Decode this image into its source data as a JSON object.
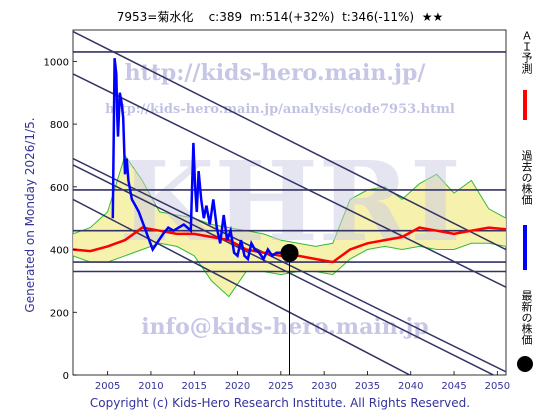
{
  "title": "7953=菊水化    c:389  m:514(+32%)  t:346(-11%)  ★★",
  "side_label": "Generated on Monday 2026/1/5.",
  "copyright": "Copyright (c) Kids-Hero Research Institute. All Rights Reserved.",
  "watermarks": {
    "url": "http://kids-hero.main.jp/",
    "analysis_url": "http://kids-hero.main.jp/analysis/code7953.html",
    "brand": "KHRI",
    "email": "info@kids-hero.main.jp"
  },
  "legend": [
    {
      "label": "ＡＩ予測",
      "color": "#ff0000",
      "marker": "line"
    },
    {
      "label": "過去の株価",
      "color": "#0000ff",
      "marker": "line"
    },
    {
      "label": "最新の株価",
      "color": "#000000",
      "marker": "dot"
    }
  ],
  "chart_data": {
    "type": "line",
    "title": "7953=菊水化    c:389  m:514(+32%)  t:346(-11%)  ★★",
    "xlim": [
      2001,
      2051
    ],
    "ylim": [
      0,
      1100
    ],
    "x_ticks": [
      2005,
      2010,
      2015,
      2020,
      2025,
      2030,
      2035,
      2040,
      2045,
      2050
    ],
    "y_ticks": [
      0,
      200,
      400,
      600,
      800,
      1000
    ],
    "grid": false,
    "legend_position": "right",
    "latest_price": {
      "x": 2026.0,
      "y": 389
    },
    "horizontal_levels": [
      1030,
      590,
      460,
      360,
      330
    ],
    "trend_lines": [
      {
        "from": [
          2001,
          1095
        ],
        "to": [
          2051,
          400
        ]
      },
      {
        "from": [
          2001,
          960
        ],
        "to": [
          2051,
          280
        ]
      },
      {
        "from": [
          2001,
          690
        ],
        "to": [
          2051,
          10
        ]
      },
      {
        "from": [
          2001,
          670
        ],
        "to": [
          2051,
          -20
        ]
      },
      {
        "from": [
          2001,
          560
        ],
        "to": [
          2051,
          -160
        ]
      }
    ],
    "series": [
      {
        "name": "過去の株価",
        "color": "#0000ff",
        "x": [
          2005.6,
          2005.8,
          2006.0,
          2006.1,
          2006.2,
          2006.4,
          2006.6,
          2006.8,
          2007.0,
          2007.2,
          2007.4,
          2007.8,
          2008.2,
          2008.6,
          2010.2,
          2011.4,
          2012.0,
          2012.6,
          2013.2,
          2013.8,
          2014.2,
          2014.6,
          2014.9,
          2015.1,
          2015.3,
          2015.5,
          2015.8,
          2016.1,
          2016.4,
          2016.8,
          2017.2,
          2017.6,
          2018.0,
          2018.4,
          2018.8,
          2019.2,
          2019.6,
          2020.0,
          2020.4,
          2020.8,
          2021.2,
          2021.6,
          2022.0,
          2022.5,
          2023.0,
          2023.5,
          2024.0,
          2024.5,
          2025.0,
          2025.5,
          2026.0
        ],
        "y": [
          500,
          1010,
          960,
          830,
          760,
          900,
          870,
          820,
          640,
          690,
          620,
          560,
          540,
          520,
          400,
          450,
          470,
          460,
          470,
          480,
          470,
          460,
          740,
          600,
          520,
          650,
          560,
          500,
          540,
          480,
          560,
          470,
          420,
          510,
          430,
          460,
          390,
          380,
          430,
          380,
          370,
          420,
          400,
          390,
          370,
          400,
          380,
          390,
          390,
          395,
          389
        ]
      },
      {
        "name": "ＡＩ予測",
        "color": "#ff0000",
        "x": [
          2001,
          2003,
          2005,
          2007,
          2009,
          2011,
          2013,
          2015,
          2017,
          2019,
          2021,
          2023,
          2025,
          2027,
          2029,
          2031,
          2033,
          2035,
          2037,
          2039,
          2041,
          2043,
          2045,
          2047,
          2049,
          2051
        ],
        "y": [
          400,
          395,
          410,
          430,
          470,
          460,
          450,
          450,
          440,
          430,
          400,
          390,
          380,
          380,
          370,
          360,
          400,
          420,
          430,
          440,
          470,
          460,
          450,
          460,
          470,
          465
        ]
      },
      {
        "name": "forecast_band_upper",
        "color": "#33bb33",
        "x": [
          2001,
          2003,
          2005,
          2007,
          2009,
          2011,
          2013,
          2015,
          2017,
          2019,
          2021,
          2023,
          2025,
          2027,
          2029,
          2031,
          2033,
          2035,
          2037,
          2039,
          2041,
          2043,
          2045,
          2047,
          2049,
          2051
        ],
        "y": [
          450,
          470,
          520,
          700,
          620,
          520,
          510,
          500,
          480,
          470,
          460,
          450,
          430,
          420,
          410,
          420,
          560,
          590,
          600,
          560,
          610,
          640,
          580,
          620,
          530,
          500
        ]
      },
      {
        "name": "forecast_band_lower",
        "color": "#33bb33",
        "x": [
          2001,
          2003,
          2005,
          2007,
          2009,
          2011,
          2013,
          2015,
          2017,
          2019,
          2021,
          2023,
          2025,
          2027,
          2029,
          2031,
          2033,
          2035,
          2037,
          2039,
          2041,
          2043,
          2045,
          2047,
          2049,
          2051
        ],
        "y": [
          380,
          360,
          360,
          380,
          400,
          420,
          410,
          380,
          300,
          250,
          330,
          330,
          320,
          330,
          330,
          320,
          370,
          400,
          410,
          400,
          410,
          400,
          400,
          420,
          420,
          410
        ]
      }
    ]
  }
}
